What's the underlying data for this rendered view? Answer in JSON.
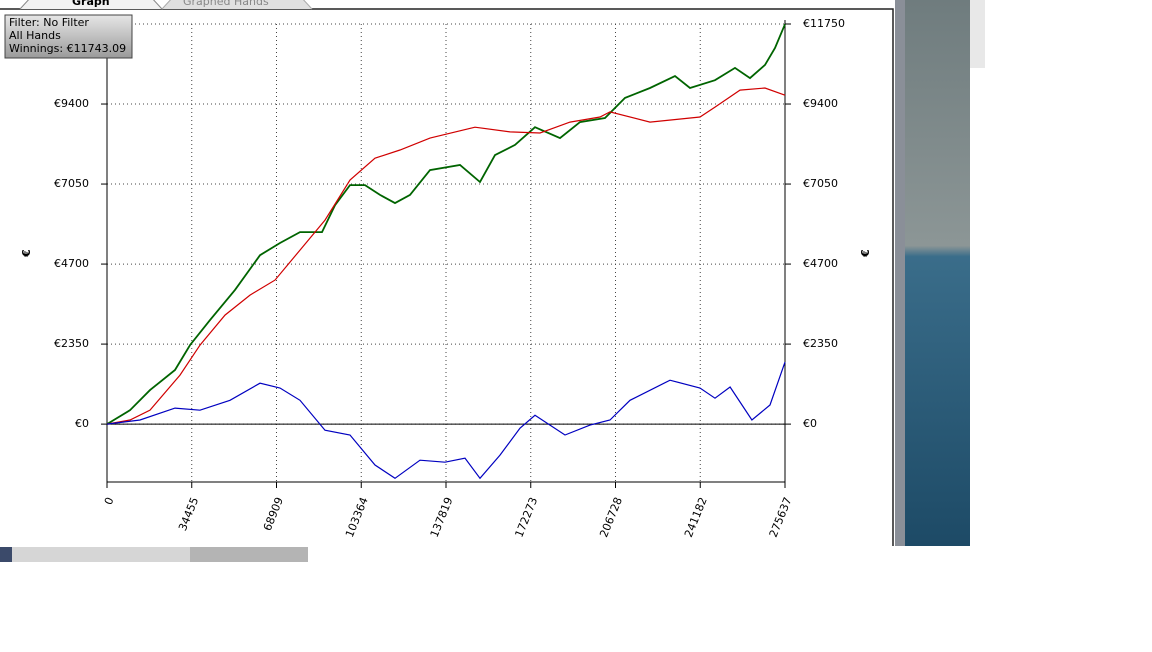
{
  "ui": {
    "tabs": [
      "Graph",
      "Graphed Hands"
    ],
    "info": [
      "Filter: No Filter",
      "All Hands",
      "Winnings: €11743.09"
    ]
  },
  "chart_data": {
    "type": "line",
    "y_label": "€",
    "xlim": [
      0,
      275637
    ],
    "xticks": [
      0,
      34455,
      68909,
      103364,
      137819,
      172273,
      206728,
      241182,
      275637
    ],
    "ylim": [
      -1700,
      11750
    ],
    "yticks": [
      {
        "value": 0,
        "label": "€0"
      },
      {
        "value": 2350,
        "label": "€2350"
      },
      {
        "value": 4700,
        "label": "€4700"
      },
      {
        "value": 7050,
        "label": "€7050"
      },
      {
        "value": 9400,
        "label": "€9400"
      },
      {
        "value": 11750,
        "label": "€11750"
      }
    ],
    "grid": true,
    "series": [
      {
        "color": "#006400",
        "x": [
          0,
          9350,
          17480,
          27640,
          33740,
          41870,
          52030,
          62190,
          70330,
          78460,
          87400,
          92690,
          98790,
          104880,
          110980,
          117080,
          123180,
          131310,
          143500,
          151640,
          157730,
          165870,
          174000,
          184160,
          192280,
          202450,
          210580,
          220750,
          230910,
          237010,
          247170,
          255300,
          261400,
          267500,
          271560,
          275637
        ],
        "values": [
          0,
          410,
          1000,
          1590,
          2320,
          3055,
          3940,
          4960,
          5320,
          5640,
          5640,
          6430,
          7020,
          7020,
          6730,
          6490,
          6730,
          7460,
          7610,
          7110,
          7900,
          8200,
          8720,
          8400,
          8870,
          8990,
          9580,
          9870,
          10220,
          9870,
          10100,
          10460,
          10160,
          10550,
          11045,
          11743
        ]
      },
      {
        "color": "#d00000",
        "x": [
          0,
          9350,
          17480,
          29680,
          37810,
          47970,
          58130,
          68300,
          78460,
          88620,
          98790,
          108950,
          119110,
          131310,
          149600,
          163830,
          176020,
          188220,
          200420,
          204480,
          220750,
          241070,
          247170,
          257340,
          267500,
          275637
        ],
        "values": [
          0,
          120,
          410,
          1440,
          2320,
          3200,
          3790,
          4230,
          5110,
          5990,
          7170,
          7810,
          8050,
          8400,
          8720,
          8580,
          8550,
          8870,
          9020,
          9170,
          8870,
          9020,
          9310,
          9810,
          9870,
          9660
        ]
      },
      {
        "color": "#0000c0",
        "x": [
          0,
          13420,
          27640,
          37810,
          50000,
          62190,
          70330,
          78460,
          88620,
          98790,
          108950,
          117080,
          127250,
          137410,
          145540,
          151640,
          159770,
          167910,
          174000,
          186190,
          196350,
          204480,
          212620,
          228880,
          241070,
          247170,
          253300,
          262200,
          269530,
          275637
        ],
        "values": [
          0,
          120,
          470,
          410,
          700,
          1200,
          1060,
          700,
          -180,
          -320,
          -1200,
          -1590,
          -1060,
          -1120,
          -1000,
          -1590,
          -910,
          -120,
          260,
          -320,
          -30,
          120,
          700,
          1290,
          1060,
          760,
          1090,
          120,
          560,
          1820
        ]
      }
    ]
  }
}
